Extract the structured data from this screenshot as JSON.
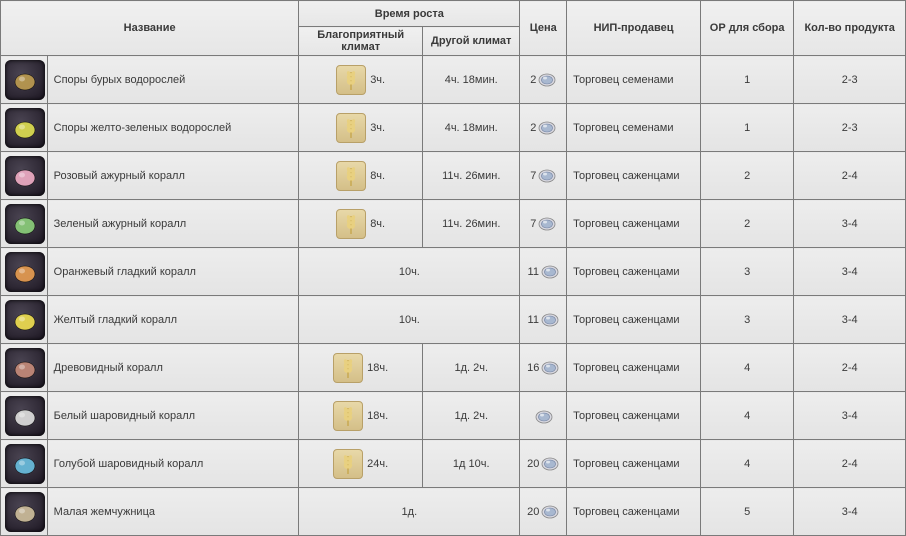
{
  "headers": {
    "name": "Название",
    "growth": "Время роста",
    "growth_good": "Благоприятный климат",
    "growth_other": "Другой климат",
    "price": "Цена",
    "npc": "НИП-продавец",
    "or": "ОР для сбора",
    "qty": "Кол-во продукта"
  },
  "items": [
    {
      "name": "Споры бурых водорослей",
      "good_time": "3ч.",
      "other_time": "4ч. 18мин.",
      "price": "2",
      "npc": "Торговец семенами",
      "or": "1",
      "qty": "2-3",
      "icon_color": "#b89850",
      "has_wheat": true,
      "merged_growth": false
    },
    {
      "name": "Споры желто-зеленых водорослей",
      "good_time": "3ч.",
      "other_time": "4ч. 18мин.",
      "price": "2",
      "npc": "Торговец семенами",
      "or": "1",
      "qty": "2-3",
      "icon_color": "#d8d850",
      "has_wheat": true,
      "merged_growth": false
    },
    {
      "name": "Розовый ажурный коралл",
      "good_time": "8ч.",
      "other_time": "11ч. 26мин.",
      "price": "7",
      "npc": "Торговец саженцами",
      "or": "2",
      "qty": "2-4",
      "icon_color": "#e8a8c0",
      "has_wheat": true,
      "merged_growth": false
    },
    {
      "name": "Зеленый ажурный коралл",
      "good_time": "8ч.",
      "other_time": "11ч. 26мин.",
      "price": "7",
      "npc": "Торговец саженцами",
      "or": "2",
      "qty": "3-4",
      "icon_color": "#88c878",
      "has_wheat": true,
      "merged_growth": false
    },
    {
      "name": "Оранжевый гладкий коралл",
      "good_time": "10ч.",
      "other_time": "",
      "price": "11",
      "npc": "Торговец саженцами",
      "or": "3",
      "qty": "3-4",
      "icon_color": "#e09850",
      "has_wheat": false,
      "merged_growth": true
    },
    {
      "name": "Желтый гладкий коралл",
      "good_time": "10ч.",
      "other_time": "",
      "price": "11",
      "npc": "Торговец саженцами",
      "or": "3",
      "qty": "3-4",
      "icon_color": "#e8d850",
      "has_wheat": false,
      "merged_growth": true
    },
    {
      "name": "Древовидный коралл",
      "good_time": "18ч.",
      "other_time": "1д. 2ч.",
      "price": "16",
      "npc": "Торговец саженцами",
      "or": "4",
      "qty": "2-4",
      "icon_color": "#c08878",
      "has_wheat": true,
      "merged_growth": false
    },
    {
      "name": "Белый шаровидный коралл",
      "good_time": "18ч.",
      "other_time": "1д. 2ч.",
      "price": "",
      "npc": "Торговец саженцами",
      "or": "4",
      "qty": "3-4",
      "icon_color": "#d8d8d8",
      "has_wheat": true,
      "merged_growth": false
    },
    {
      "name": "Голубой шаровидный коралл",
      "good_time": "24ч.",
      "other_time": "1д 10ч.",
      "price": "20",
      "npc": "Торговец саженцами",
      "or": "4",
      "qty": "2-4",
      "icon_color": "#68b8d8",
      "has_wheat": true,
      "merged_growth": false
    },
    {
      "name": "Малая жемчужница",
      "good_time": "1д.",
      "other_time": "",
      "price": "20",
      "npc": "Торговец саженцами",
      "or": "5",
      "qty": "3-4",
      "icon_color": "#c8b898",
      "has_wheat": false,
      "merged_growth": true
    }
  ]
}
